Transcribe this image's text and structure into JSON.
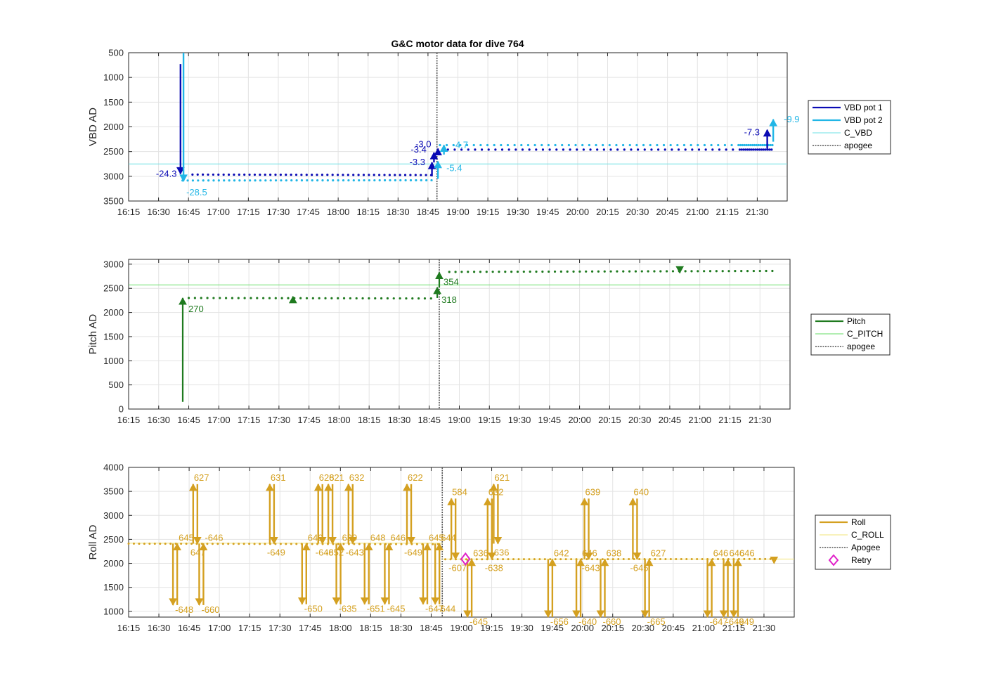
{
  "title": "G&C motor data for dive 764",
  "x_ticks": [
    "16:15",
    "16:30",
    "16:45",
    "17:00",
    "17:15",
    "17:30",
    "17:45",
    "18:00",
    "18:15",
    "18:30",
    "18:45",
    "19:00",
    "19:15",
    "19:30",
    "19:45",
    "20:00",
    "20:15",
    "20:30",
    "20:45",
    "21:00",
    "21:15",
    "21:30"
  ],
  "colors": {
    "vbd1": "#0a0ab4",
    "vbd2": "#21b6e6",
    "c_vbd": "#6ee0e6",
    "pitch": "#1f7a1f",
    "c_pitch": "#66dd66",
    "roll": "#d4a020",
    "c_roll": "#f2e67a",
    "retry": "#e020c8",
    "apogee": "#555555"
  },
  "chart_data": [
    {
      "type": "line",
      "ylabel": "VBD AD",
      "ylim": [
        500,
        3500
      ],
      "y_reversed": true,
      "y_ticks": [
        "500",
        "1000",
        "1500",
        "2000",
        "2500",
        "3000",
        "3500"
      ],
      "legend": [
        "VBD pot 1",
        "VBD pot 2",
        "C_VBD",
        "apogee"
      ],
      "legend_position": "outside-right",
      "grid": true,
      "apogee_min": 154.5,
      "c_vbd": 2750,
      "series": [
        {
          "name": "VBD pot 1",
          "x_start": 32,
          "x_end": 152,
          "y_start": 2965,
          "y_end": 2975,
          "x_start2": 160,
          "x_end2": 323,
          "y2": 2460
        },
        {
          "name": "VBD pot 2",
          "x_start": 27,
          "x_end": 152,
          "y_start": 3085,
          "y_end": 3080,
          "x_start2": 156,
          "x_end2": 323,
          "y2": 2370
        }
      ],
      "moves": [
        {
          "series": "VBD pot 1",
          "x": 26,
          "y0": 730,
          "y1": 2950,
          "label": "-24.3"
        },
        {
          "series": "VBD pot 2",
          "x": 27.5,
          "y0": 500,
          "y1": 3100,
          "label": "-28.5"
        },
        {
          "series": "VBD pot 1",
          "x": 152,
          "y0": 3000,
          "y1": 2720,
          "label": "-3.3"
        },
        {
          "series": "VBD pot 1",
          "x": 153,
          "y0": 2720,
          "y1": 2520,
          "label": "-3.4"
        },
        {
          "series": "VBD pot 1",
          "x": 155,
          "y0": 2540,
          "y1": 2440,
          "label": "-3.0"
        },
        {
          "series": "VBD pot 2",
          "x": 155,
          "y0": 3050,
          "y1": 2700,
          "label": "-5.4"
        },
        {
          "series": "VBD pot 2",
          "x": 158,
          "y0": 2560,
          "y1": 2370,
          "label": "-4.7"
        },
        {
          "series": "VBD pot 1",
          "x": 320,
          "y0": 2440,
          "y1": 2060,
          "label": "-7.3"
        },
        {
          "series": "VBD pot 2",
          "x": 323,
          "y0": 2300,
          "y1": 1850,
          "label": "-9.9"
        }
      ]
    },
    {
      "type": "line",
      "ylabel": "Pitch AD",
      "ylim": [
        0,
        3100
      ],
      "y_ticks": [
        "0",
        "500",
        "1000",
        "1500",
        "2000",
        "2500",
        "3000"
      ],
      "legend": [
        "Pitch",
        "C_PITCH",
        "apogee"
      ],
      "legend_position": "outside-right",
      "grid": true,
      "apogee_min": 155,
      "c_pitch": 2570,
      "series": [
        {
          "name": "Pitch",
          "segments": [
            [
              30,
              2300,
              152,
              2290
            ],
            [
              160,
              2840,
              323,
              2860
            ]
          ]
        }
      ],
      "moves": [
        {
          "x": 27,
          "y0": 150,
          "y1": 2300,
          "label": "270"
        },
        {
          "x": 82,
          "y0": 2290,
          "y1": 2330,
          "label": ""
        },
        {
          "x": 154,
          "y0": 2300,
          "y1": 2520,
          "label": "318"
        },
        {
          "x": 155,
          "y0": 2520,
          "y1": 2830,
          "label": "354"
        },
        {
          "x": 275,
          "y0": 2880,
          "y1": 2820,
          "label": ""
        }
      ]
    },
    {
      "type": "line",
      "ylabel": "Roll AD",
      "ylim": [
        880,
        4000
      ],
      "y_ticks": [
        "1000",
        "1500",
        "2000",
        "2500",
        "3000",
        "3500",
        "4000"
      ],
      "legend": [
        "Roll",
        "C_ROLL",
        "Apogee",
        "Retry"
      ],
      "legend_position": "outside-right",
      "grid": true,
      "apogee_min": 155.5,
      "c_roll": 2420,
      "c_roll2": 2090,
      "series": [
        {
          "name": "Roll",
          "segments": [
            [
              0,
              2410,
              155,
              2400
            ],
            [
              157,
              2085,
              323,
              2090
            ]
          ]
        }
      ],
      "retry": {
        "x": 167,
        "y": 2090
      },
      "moves": [
        {
          "x": 22,
          "t": -648,
          "o": 645,
          "ymin": 1130,
          "ymax": 2410
        },
        {
          "x": 32,
          "t": 627,
          "o": 647,
          "ymin": 2410,
          "ymax": 3650
        },
        {
          "x": 35,
          "t": -660,
          "o": -646,
          "ymin": 1130,
          "ymax": 2410
        },
        {
          "x": 70,
          "t": 631,
          "o": -649,
          "ymin": 2410,
          "ymax": 3650
        },
        {
          "x": 86,
          "t": -650,
          "o": 649,
          "ymin": 1150,
          "ymax": 2410
        },
        {
          "x": 94,
          "t": 628,
          "o": -648,
          "ymin": 2410,
          "ymax": 3650
        },
        {
          "x": 99,
          "t": 621,
          "o": -652,
          "ymin": 2410,
          "ymax": 3650
        },
        {
          "x": 103,
          "t": -635,
          "o": 639,
          "ymin": 1150,
          "ymax": 2410
        },
        {
          "x": 109,
          "t": 632,
          "o": -643,
          "ymin": 2410,
          "ymax": 3650
        },
        {
          "x": 117,
          "t": -651,
          "o": 648,
          "ymin": 1150,
          "ymax": 2410
        },
        {
          "x": 127,
          "t": -645,
          "o": 646,
          "ymin": 1150,
          "ymax": 2410
        },
        {
          "x": 138,
          "t": 622,
          "o": -649,
          "ymin": 2410,
          "ymax": 3650
        },
        {
          "x": 146,
          "t": -647,
          "o": 645,
          "ymin": 1150,
          "ymax": 2410
        },
        {
          "x": 152,
          "t": -644,
          "o": 644,
          "ymin": 1150,
          "ymax": 2410
        },
        {
          "x": 181,
          "t": 621,
          "o": -636,
          "ymin": 2410,
          "ymax": 3650
        },
        {
          "x": 160,
          "t": 584,
          "o": -607,
          "ymin": 2085,
          "ymax": 3350
        },
        {
          "x": 168,
          "t": -645,
          "o": 636,
          "ymin": 880,
          "ymax": 2085
        },
        {
          "x": 178,
          "t": 632,
          "o": -638,
          "ymin": 2085,
          "ymax": 3350
        },
        {
          "x": 208,
          "t": -656,
          "o": 642,
          "ymin": 880,
          "ymax": 2085
        },
        {
          "x": 222,
          "t": -640,
          "o": 646,
          "ymin": 880,
          "ymax": 2085
        },
        {
          "x": 226,
          "t": 639,
          "o": -643,
          "ymin": 2085,
          "ymax": 3350
        },
        {
          "x": 234,
          "t": -660,
          "o": 638,
          "ymin": 880,
          "ymax": 2085
        },
        {
          "x": 250,
          "t": 640,
          "o": -645,
          "ymin": 2085,
          "ymax": 3350
        },
        {
          "x": 256,
          "t": -665,
          "o": 627,
          "ymin": 880,
          "ymax": 2085
        },
        {
          "x": 287,
          "t": -647,
          "o": 646,
          "ymin": 880,
          "ymax": 2085
        },
        {
          "x": 295,
          "t": -649,
          "o": 646,
          "ymin": 880,
          "ymax": 2085
        },
        {
          "x": 300,
          "t": -649,
          "o": 646,
          "ymin": 880,
          "ymax": 2085
        }
      ],
      "final_arrow": {
        "x": 320,
        "y0": 2090,
        "y1": 2000
      }
    }
  ]
}
